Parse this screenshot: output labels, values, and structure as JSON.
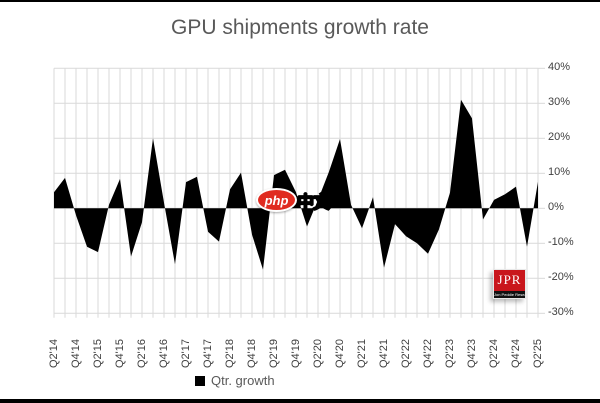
{
  "page": {
    "title": "GPU shipments growth rate"
  },
  "chart_data": {
    "type": "area",
    "title": "GPU shipments growth rate",
    "series_name": "Qtr. growth",
    "categories": [
      "Q2'14",
      "Q3'14",
      "Q4'14",
      "Q1'15",
      "Q2'15",
      "Q3'15",
      "Q4'15",
      "Q1'16",
      "Q2'16",
      "Q3'16",
      "Q4'16",
      "Q1'17",
      "Q2'17",
      "Q3'17",
      "Q4'17",
      "Q1'18",
      "Q2'18",
      "Q3'18",
      "Q4'18",
      "Q1'19",
      "Q2'19",
      "Q3'19",
      "Q4'19",
      "Q1'20",
      "Q2'20",
      "Q3'20",
      "Q4'20",
      "Q1'21",
      "Q2'21",
      "Q3'21",
      "Q4'21",
      "Q1'22",
      "Q2'22",
      "Q3'22",
      "Q4'22",
      "Q1'23",
      "Q2'23",
      "Q3'23",
      "Q4'23",
      "Q1'24",
      "Q2'24",
      "Q3'24",
      "Q4'24",
      "Q1'25",
      "Q2'25"
    ],
    "values": [
      4.6,
      8.7,
      -2,
      -11,
      -12.5,
      1,
      8.4,
      -13.8,
      -4,
      20,
      1.6,
      -16,
      7.5,
      9,
      -6.7,
      -9.5,
      5.4,
      10.2,
      -7.5,
      -17.5,
      9.5,
      11,
      4.6,
      -5.2,
      2.4,
      10.5,
      19.8,
      1,
      -5.7,
      3.2,
      -17,
      -4.5,
      -8,
      -10,
      -13,
      -6,
      4.5,
      31,
      25.7,
      -3.2,
      2.4,
      4,
      6.2,
      -11,
      7.6
    ],
    "x_tick_labels": [
      "Q2'14",
      "Q4'14",
      "Q2'15",
      "Q4'15",
      "Q2'16",
      "Q4'16",
      "Q2'17",
      "Q4'17",
      "Q2'18",
      "Q4'18",
      "Q2'19",
      "Q4'19",
      "Q2'20",
      "Q4'20",
      "Q2'21",
      "Q4'21",
      "Q2'22",
      "Q4'22",
      "Q2'23",
      "Q4'23",
      "Q2'24",
      "Q4'24",
      "Q2'25"
    ],
    "y_tick_labels": [
      "40%",
      "30%",
      "20%",
      "10%",
      "0%",
      "-10%",
      "-20%",
      "-30%"
    ],
    "ylim": [
      -30,
      40
    ],
    "y_step_pct": 10,
    "grid": "both",
    "legend_position": "bottom"
  },
  "legend": {
    "label": "Qtr. growth",
    "swatch_color": "#000000"
  },
  "watermarks": {
    "php_badge": {
      "text": "php",
      "bg": "#e02b20"
    },
    "cn_text": "中文",
    "jpr_logo": {
      "text": "JPR",
      "subtext": "Jon Peddie Research",
      "bg": "#c9161c"
    }
  },
  "colors": {
    "area_fill": "#000000",
    "gridline": "#d9d9d9",
    "axis_text": "#3f3f3f",
    "title_text": "#595959",
    "background": "#ffffff"
  }
}
